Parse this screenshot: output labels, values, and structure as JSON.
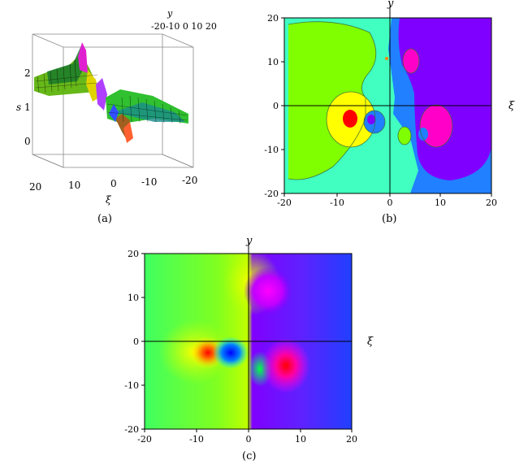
{
  "panel_a": {
    "caption": "(a)",
    "z_axis": {
      "label": "s",
      "ticks": [
        "2",
        "1",
        "0"
      ]
    },
    "xi_axis": {
      "label": "ξ",
      "ticks": [
        "20",
        "10",
        "0",
        "-10",
        "-20"
      ]
    },
    "y_axis": {
      "label": "y",
      "ticks_text": "-20-10 0 10 20"
    }
  },
  "panel_b": {
    "caption": "(b)",
    "x_label": "ξ",
    "y_label": "y",
    "x_ticks": [
      "-20",
      "-10",
      "0",
      "10",
      "20"
    ],
    "y_ticks": [
      "20",
      "10",
      "0",
      "-10",
      "-20"
    ]
  },
  "panel_c": {
    "caption": "(c)",
    "x_label": "ξ",
    "y_label": "y",
    "x_ticks": [
      "-20",
      "-10",
      "0",
      "10",
      "20"
    ],
    "y_ticks": [
      "20",
      "10",
      "0",
      "-10",
      "-20"
    ]
  },
  "colors": {
    "green": "#80ff00",
    "aqua": "#40ffc0",
    "blue": "#0080ff",
    "violet": "#8000ff",
    "magenta": "#ff00ff",
    "red": "#ff0000",
    "yellow": "#ffff00"
  }
}
